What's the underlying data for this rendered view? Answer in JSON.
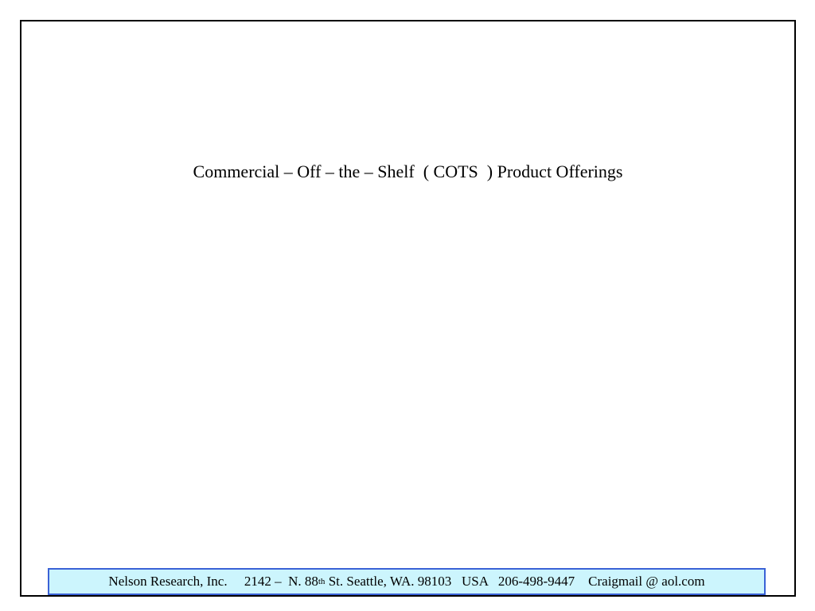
{
  "slide": {
    "title": "Commercial – Off – the – Shelf  ( COTS  ) Product Offerings"
  },
  "footer": {
    "company": "Nelson Research, Inc.",
    "street_prefix": "     2142 –  N. 88",
    "street_sup": "th",
    "street_suffix": " St. Seattle, WA. 98103   USA   206-498-9447    Craigmail @ aol.com"
  },
  "colors": {
    "frame_border": "#000000",
    "footer_border": "#3a62d6",
    "footer_background": "#ccf5fd"
  }
}
